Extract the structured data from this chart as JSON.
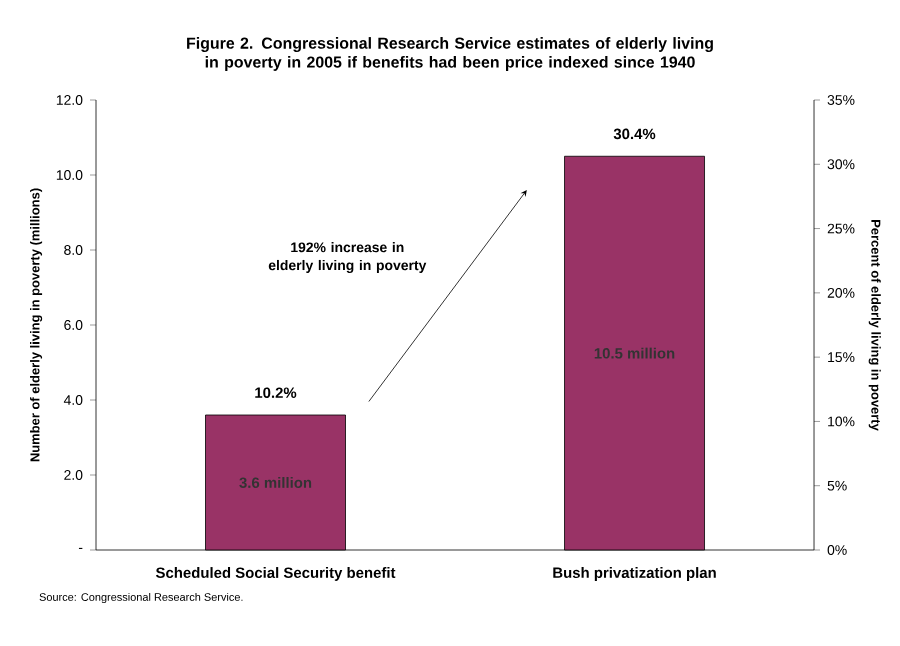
{
  "chart_data": {
    "type": "bar",
    "title": "Figure 2. Congressional Research Service estimates of elderly living in poverty in 2005 if benefits had been price indexed since 1940",
    "categories": [
      "Scheduled Social Security benefit",
      "Bush privatization plan"
    ],
    "values": [
      3.6,
      10.5
    ],
    "color": "#993366",
    "value_labels": [
      "3.6 million",
      "10.5 million"
    ],
    "ylabel": "Number of elderly living in poverty (millions)",
    "y2label": "Percent of elderly living in poverty",
    "ylim": [
      0,
      12
    ],
    "yticks": [
      {
        "value": 0,
        "label": "-"
      },
      {
        "value": 2,
        "label": "2.0"
      },
      {
        "value": 4,
        "label": "4.0"
      },
      {
        "value": 6,
        "label": "6.0"
      },
      {
        "value": 8,
        "label": "8.0"
      },
      {
        "value": 10,
        "label": "10.0"
      },
      {
        "value": 12,
        "label": "12.0"
      }
    ],
    "y2lim": [
      0,
      35
    ],
    "y2ticks": [
      {
        "value": 0,
        "label": "0%"
      },
      {
        "value": 5,
        "label": "5%"
      },
      {
        "value": 10,
        "label": "10%"
      },
      {
        "value": 15,
        "label": "15%"
      },
      {
        "value": 20,
        "label": "20%"
      },
      {
        "value": 25,
        "label": "25%"
      },
      {
        "value": 30,
        "label": "30%"
      },
      {
        "value": 35,
        "label": "35%"
      }
    ],
    "annotations": [
      {
        "text": "10.2%",
        "x": "Scheduled Social Security benefit",
        "y": 3.6
      },
      {
        "text": "30.4%",
        "x": "Bush privatization plan",
        "y": 10.5
      },
      "192% increase in elderly living in poverty",
      "Source: Congressional Research Service."
    ]
  }
}
